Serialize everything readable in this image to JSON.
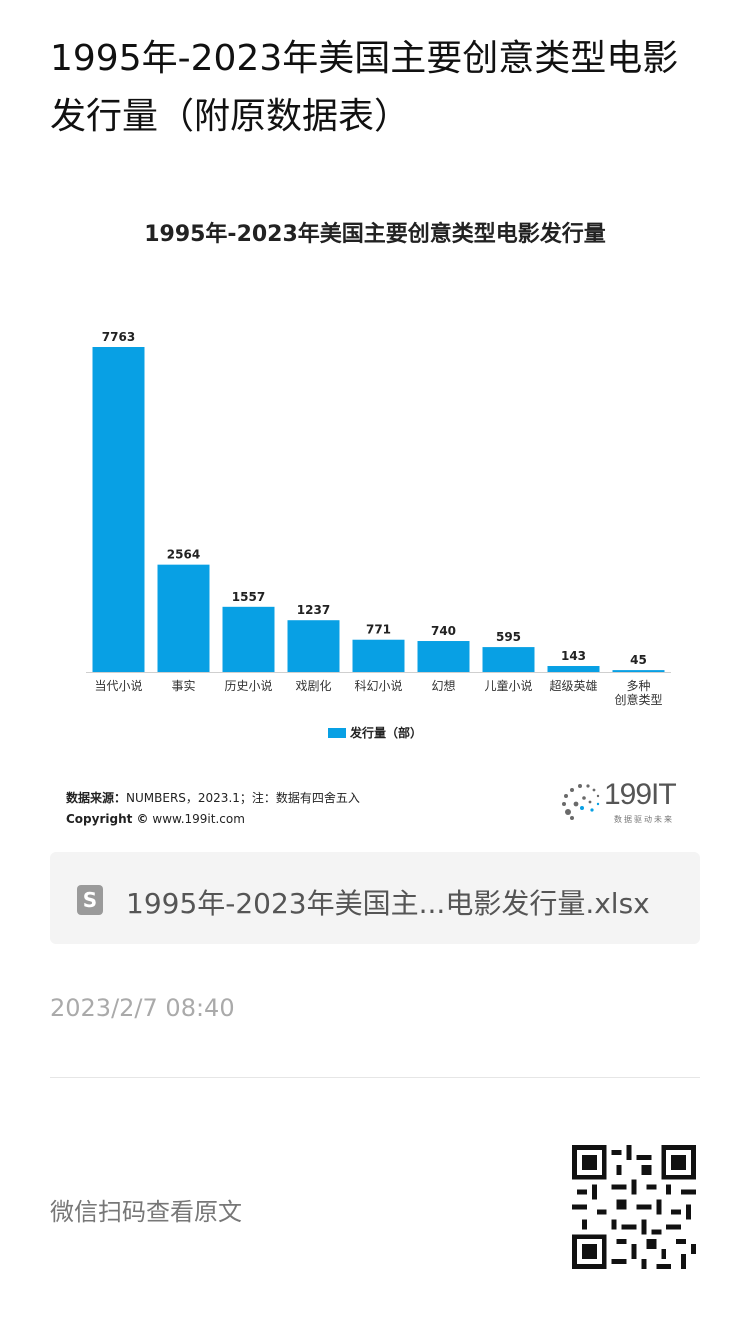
{
  "page": {
    "title": "1995年-2023年美国主要创意类型电影发行量（附原数据表）"
  },
  "chart_data": {
    "type": "bar",
    "title": "1995年-2023年美国主要创意类型电影发行量",
    "categories": [
      "当代小说",
      "事实",
      "历史小说",
      "戏剧化",
      "科幻小说",
      "幻想",
      "儿童小说",
      "超级英雄",
      "多种创意类型"
    ],
    "series": [
      {
        "name": "发行量（部）",
        "values": [
          7763,
          2564,
          1557,
          1237,
          771,
          740,
          595,
          143,
          45
        ],
        "color": "#08a0e4"
      }
    ],
    "ylim": [
      0,
      7763
    ],
    "grid": false,
    "legend": "bottom"
  },
  "source": {
    "label": "数据来源：",
    "text": "NUMBERS，2023.1；注：数据有四舍五入",
    "copyright_label": "Copyright ©",
    "copyright_text": "www.199it.com"
  },
  "logo": {
    "name": "199IT",
    "tagline": "数据驱动未来"
  },
  "attachment": {
    "icon": "spreadsheet-icon",
    "icon_glyph": "S",
    "filename": "1995年-2023年美国主...电影发行量.xlsx"
  },
  "timestamp": "2023/2/7 08:40",
  "footer": {
    "scan_text": "微信扫码查看原文"
  }
}
